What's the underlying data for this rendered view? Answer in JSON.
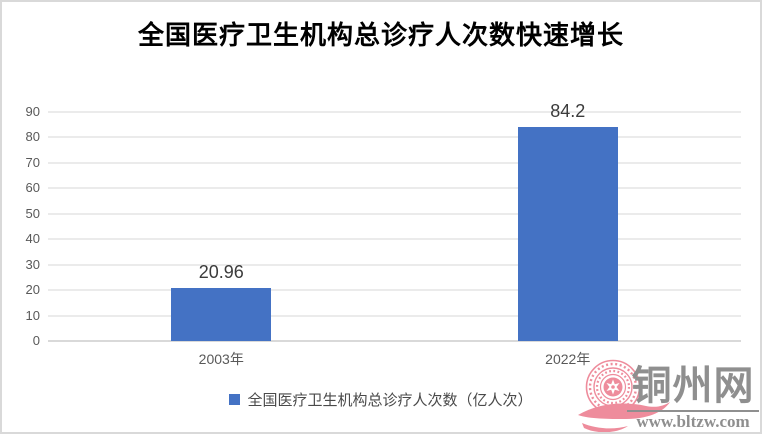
{
  "title": "全国医疗卫生机构总诊疗人次数快速增长",
  "chart_data": {
    "type": "bar",
    "title": "全国医疗卫生机构总诊疗人次数快速增长",
    "categories": [
      "2003年",
      "2022年"
    ],
    "series": [
      {
        "name": "全国医疗卫生机构总诊疗人次数（亿人次）",
        "values": [
          20.96,
          84.2
        ]
      }
    ],
    "data_labels": [
      "20.96",
      "84.2"
    ],
    "xlabel": "",
    "ylabel": "",
    "ylim": [
      0,
      90
    ],
    "yticks": [
      0,
      10,
      20,
      30,
      40,
      50,
      60,
      70,
      80,
      90
    ],
    "grid": true,
    "legend_position": "bottom",
    "bar_color": "#4472c4",
    "gridline_color": "#ebebeb",
    "axis_line_color": "#d9d9d9",
    "tick_label_color": "#595959",
    "data_label_color": "#3b3b3b"
  },
  "legend": {
    "marker_color": "#4472c4",
    "label": "全国医疗卫生机构总诊疗人次数（亿人次）"
  },
  "watermark": {
    "site_name": "铜州网",
    "site_url": "www.bltzw.com",
    "seal_color": "#ee8c9c",
    "text_color": "#8f8f8f"
  }
}
